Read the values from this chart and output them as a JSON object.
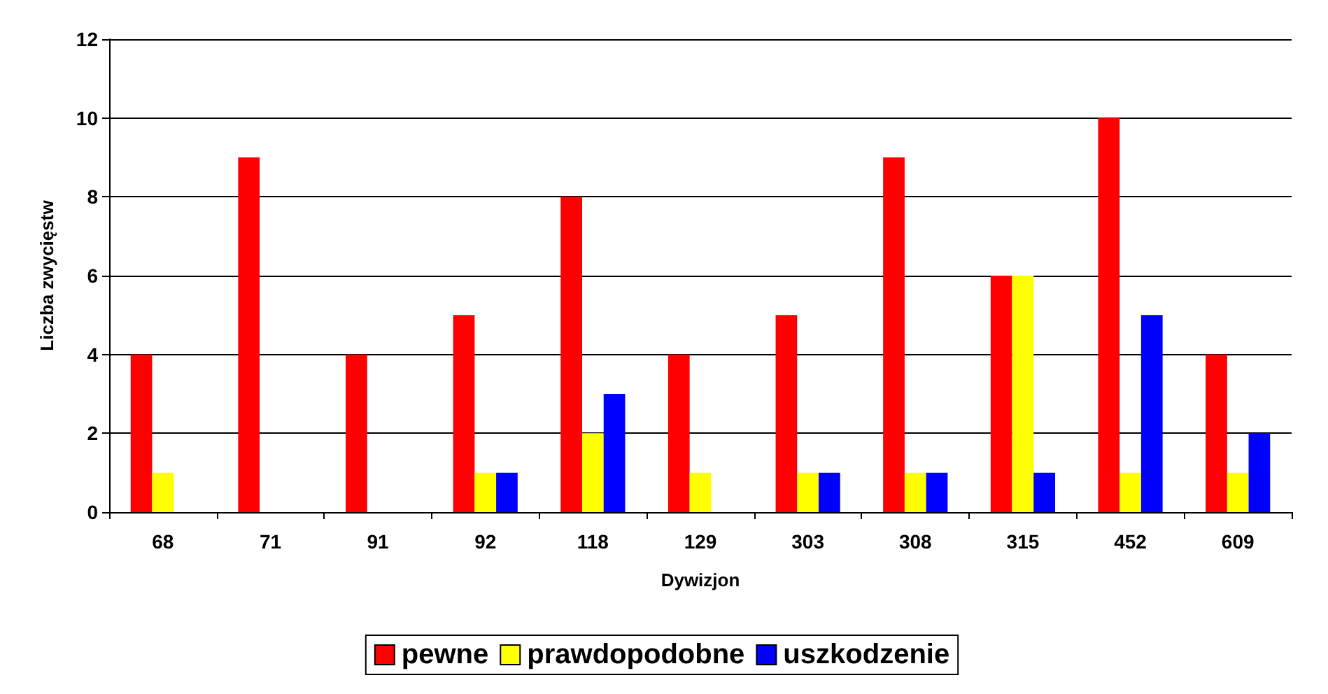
{
  "chart_data": {
    "type": "bar",
    "xlabel": "Dywizjon",
    "ylabel": "Liczba zwycięstw",
    "categories": [
      "68",
      "71",
      "91",
      "92",
      "118",
      "129",
      "303",
      "308",
      "315",
      "452",
      "609"
    ],
    "series": [
      {
        "name": "pewne",
        "color": "#ff0000",
        "values": [
          4,
          9,
          4,
          5,
          8,
          4,
          5,
          9,
          6,
          10,
          4
        ]
      },
      {
        "name": "prawdopodobne",
        "color": "#ffff00",
        "values": [
          1,
          0,
          0,
          1,
          2,
          1,
          1,
          1,
          6,
          1,
          1
        ]
      },
      {
        "name": "uszkodzenie",
        "color": "#0000ff",
        "values": [
          0,
          0,
          0,
          1,
          3,
          0,
          1,
          1,
          1,
          5,
          2
        ]
      }
    ],
    "ylim": [
      0,
      12
    ],
    "yticks": [
      0,
      2,
      4,
      6,
      8,
      10,
      12
    ],
    "grid": "y",
    "legend": "bottom"
  }
}
